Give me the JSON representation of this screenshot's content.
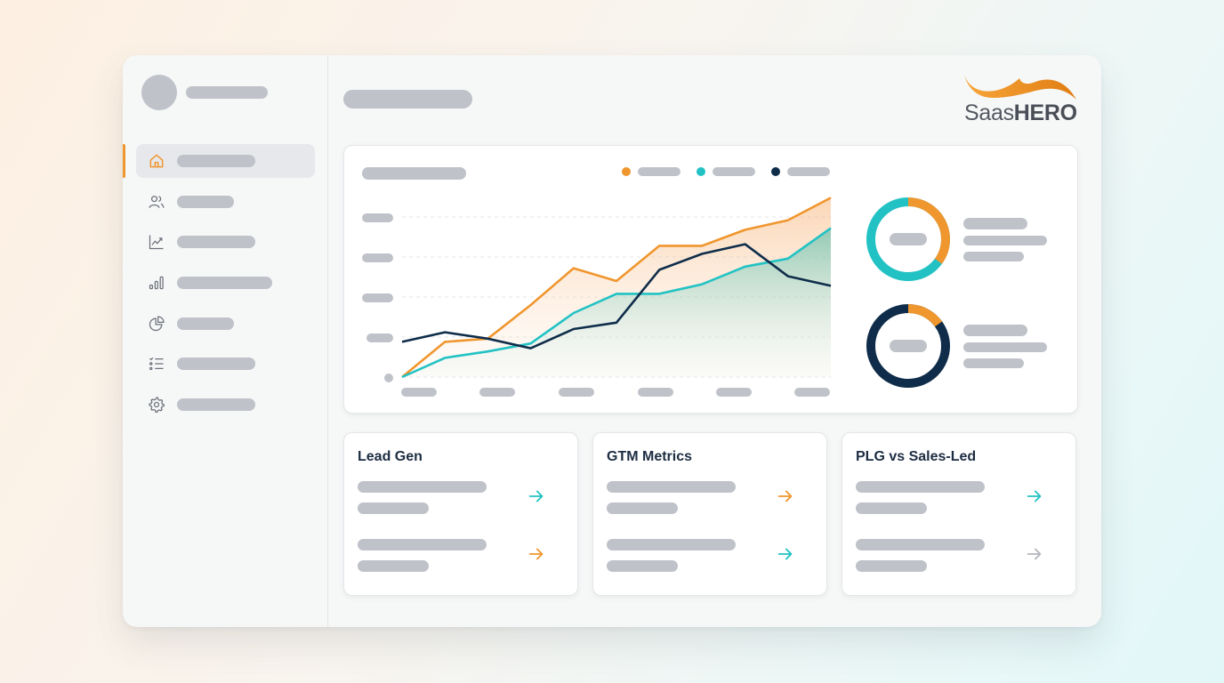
{
  "app": {
    "brand": {
      "logo_text_light": "Saas",
      "logo_text_bold": "HERO",
      "logo_icon": "swoosh-wave-icon",
      "accent_color": "#f0962e",
      "text_color": "#4a4f57"
    }
  },
  "colors": {
    "orange": "#f0962e",
    "teal": "#22c2c4",
    "navy": "#0f2d4a",
    "placeholder": "#bfc2c9",
    "title_text": "#1d2d42"
  },
  "sidebar": {
    "profile": {
      "avatar": "avatar-placeholder",
      "name": ""
    },
    "items": [
      {
        "icon": "home-icon",
        "label": "",
        "active": true
      },
      {
        "icon": "users-icon",
        "label": "",
        "active": false
      },
      {
        "icon": "trend-chart-icon",
        "label": "",
        "active": false
      },
      {
        "icon": "bar-chart-icon",
        "label": "",
        "active": false
      },
      {
        "icon": "pie-chart-icon",
        "label": "",
        "active": false
      },
      {
        "icon": "checklist-icon",
        "label": "",
        "active": false
      },
      {
        "icon": "gear-icon",
        "label": "",
        "active": false
      }
    ]
  },
  "header": {
    "page_title": ""
  },
  "chart_data": {
    "type": "line",
    "title": "",
    "xlabel": "",
    "ylabel": "",
    "x": [
      0,
      1,
      2,
      3,
      4,
      5,
      6,
      7,
      8,
      9,
      10
    ],
    "x_tick_count": 6,
    "y_tick_count": 5,
    "ylim": [
      0,
      100
    ],
    "grid": true,
    "legend_position": "top-right",
    "series": [
      {
        "name": "orange-series",
        "color": "#f0962e",
        "area_fill": true,
        "values": [
          0,
          22,
          24,
          45,
          68,
          60,
          82,
          82,
          92,
          98,
          112
        ]
      },
      {
        "name": "teal-series",
        "color": "#22c2c4",
        "area_fill": true,
        "values": [
          0,
          12,
          16,
          21,
          40,
          52,
          52,
          58,
          69,
          74,
          93
        ]
      },
      {
        "name": "navy-series",
        "color": "#0f2d4a",
        "area_fill": false,
        "values": [
          22,
          28,
          24,
          18,
          30,
          34,
          67,
          77,
          83,
          63,
          57
        ]
      }
    ],
    "donuts": [
      {
        "ring_color": "#22c2c4",
        "segment_color": "#f0962e",
        "segment_percent": 35
      },
      {
        "ring_color": "#0f2d4a",
        "segment_color": "#f0962e",
        "segment_percent": 15
      }
    ]
  },
  "cards": [
    {
      "title": "Lead Gen",
      "rows": [
        {
          "arrow_color": "#22c2c4"
        },
        {
          "arrow_color": "#f0962e"
        }
      ]
    },
    {
      "title": "GTM Metrics",
      "rows": [
        {
          "arrow_color": "#f0962e"
        },
        {
          "arrow_color": "#22c2c4"
        }
      ]
    },
    {
      "title": "PLG vs Sales-Led",
      "rows": [
        {
          "arrow_color": "#22c2c4"
        },
        {
          "arrow_color": "#b3b6bc"
        }
      ]
    }
  ]
}
